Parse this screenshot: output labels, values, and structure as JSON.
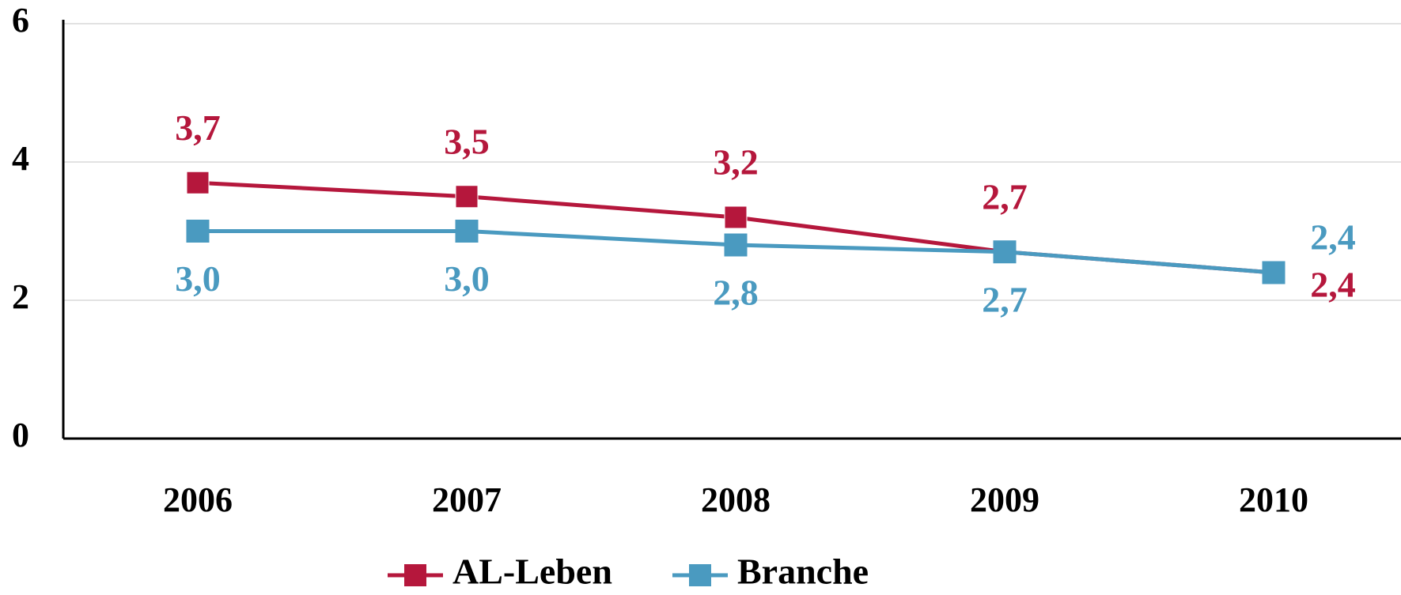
{
  "chart_data": {
    "type": "line",
    "categories": [
      "2006",
      "2007",
      "2008",
      "2009",
      "2010"
    ],
    "series": [
      {
        "name": "AL-Leben",
        "color": "#b5173c",
        "values": [
          3.7,
          3.5,
          3.2,
          2.7,
          2.4
        ],
        "value_labels": [
          "3,7",
          "3,5",
          "3,2",
          "2,7",
          "2,4"
        ]
      },
      {
        "name": "Branche",
        "color": "#4a9ac0",
        "values": [
          3.0,
          3.0,
          2.8,
          2.7,
          2.4
        ],
        "value_labels": [
          "3,0",
          "3,0",
          "2,8",
          "2,7",
          "2,4"
        ]
      }
    ],
    "ylim": [
      0,
      6
    ],
    "yticks": [
      0,
      2,
      4,
      6
    ],
    "grid": true,
    "legend": "bottom"
  }
}
